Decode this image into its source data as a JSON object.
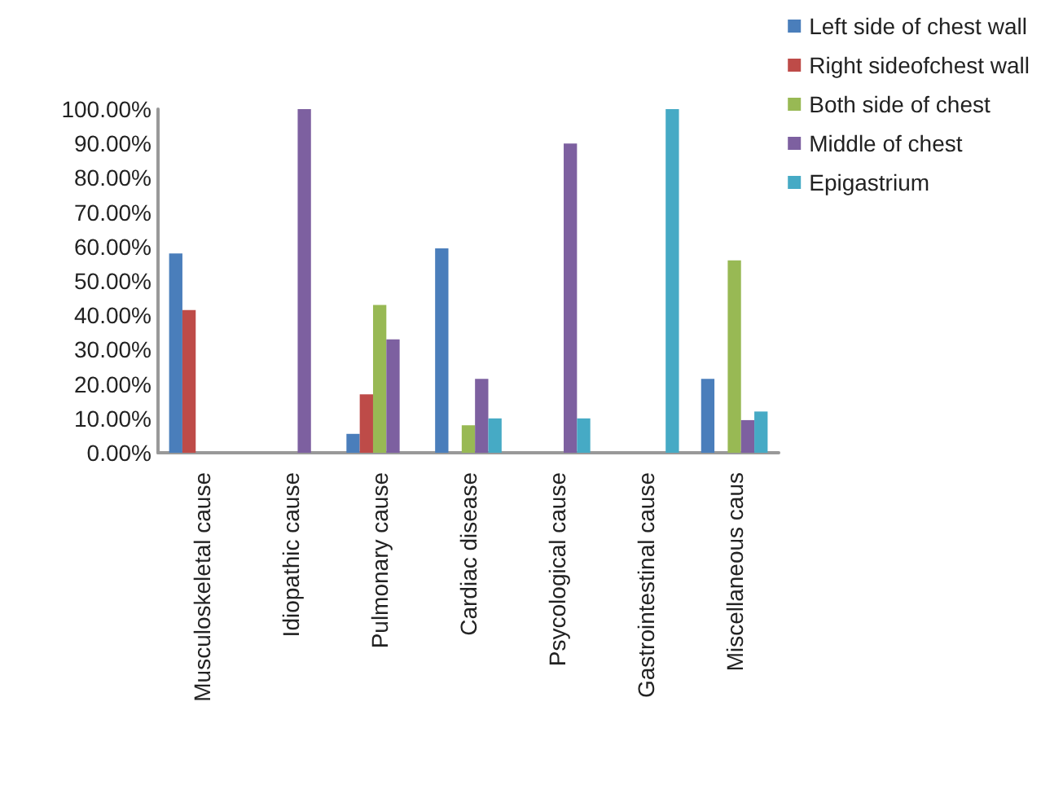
{
  "chart_data": {
    "type": "bar",
    "categories": [
      "Musculoskeletal cause",
      "Idiopathic cause",
      "Pulmonary cause",
      "Cardiac disease",
      "Psycological cause",
      "Gastrointestinal cause",
      "Miscellaneous caus"
    ],
    "series": [
      {
        "name": "Left side of chest wall",
        "color": "#4a7ebb",
        "values": [
          58,
          0,
          5.5,
          59.5,
          0,
          0,
          21.5
        ]
      },
      {
        "name": "Right sideofchest wall",
        "color": "#be4b48",
        "values": [
          41.5,
          0,
          17,
          0,
          0,
          0,
          0
        ]
      },
      {
        "name": "Both side of chest",
        "color": "#98b954",
        "values": [
          0,
          0,
          43,
          8,
          0,
          0,
          56
        ]
      },
      {
        "name": "Middle of chest",
        "color": "#7d60a0",
        "values": [
          0,
          100,
          33,
          21.5,
          90,
          0,
          9.5
        ]
      },
      {
        "name": "Epigastrium",
        "color": "#46aac5",
        "values": [
          0,
          0,
          0,
          10,
          10,
          100,
          12
        ]
      }
    ],
    "ylim": [
      0,
      100
    ],
    "yticks": [
      {
        "value": 0,
        "label": "0.00%"
      },
      {
        "value": 10,
        "label": "10.00%"
      },
      {
        "value": 20,
        "label": "20.00%"
      },
      {
        "value": 30,
        "label": "30.00%"
      },
      {
        "value": 40,
        "label": "40.00%"
      },
      {
        "value": 50,
        "label": "50.00%"
      },
      {
        "value": 60,
        "label": "60.00%"
      },
      {
        "value": 70,
        "label": "70.00%"
      },
      {
        "value": 80,
        "label": "80.00%"
      },
      {
        "value": 90,
        "label": "90.00%"
      },
      {
        "value": 100,
        "label": "100.00%"
      }
    ],
    "grid": false,
    "legend": "top right"
  }
}
